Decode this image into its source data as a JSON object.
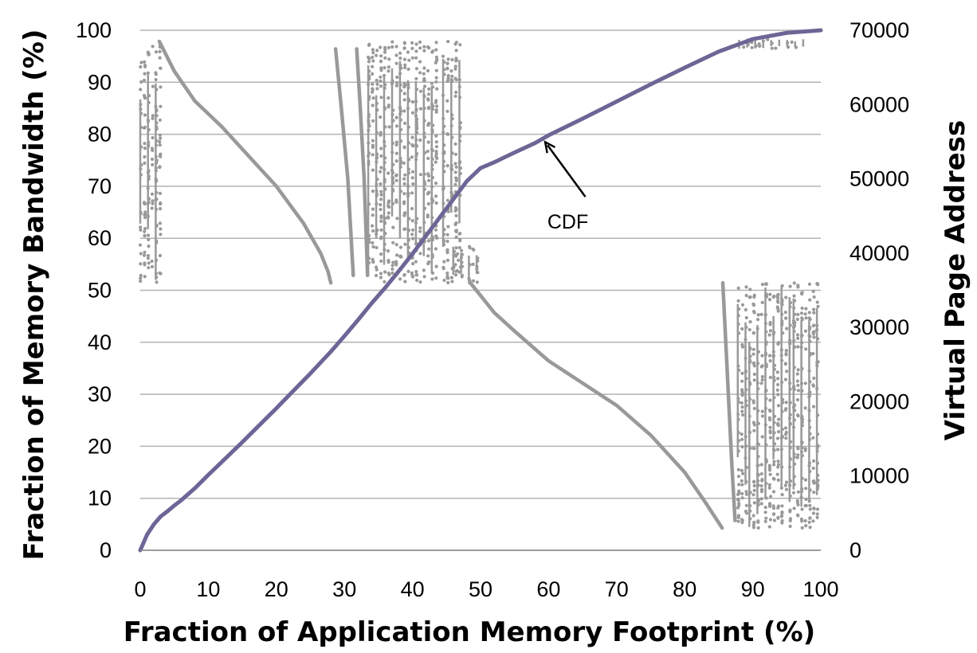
{
  "chart_data": {
    "type": "scatter",
    "title": "",
    "xlabel": "Fraction of Application Memory Footprint (%)",
    "ylabel": "Fraction of Memory Bandwidth (%)",
    "y2label": "Virtual Page Address",
    "xlim": [
      0,
      100
    ],
    "ylim": [
      0,
      100
    ],
    "y2lim": [
      0,
      70000
    ],
    "x_ticks": [
      0,
      10,
      20,
      30,
      40,
      50,
      60,
      70,
      80,
      90,
      100
    ],
    "y_ticks": [
      0,
      10,
      20,
      30,
      40,
      50,
      60,
      70,
      80,
      90,
      100
    ],
    "y2_ticks": [
      0,
      10000,
      20000,
      30000,
      40000,
      50000,
      60000,
      70000
    ],
    "grid": true,
    "legend": "none",
    "colors": {
      "cdf": "#6e6596",
      "scatter": "#999999",
      "grid": "#b3b3b3"
    },
    "series": [
      {
        "name": "CDF",
        "axis": "left",
        "x": [
          0,
          1,
          2,
          3,
          4,
          5,
          6,
          8,
          10,
          12,
          15,
          18,
          20,
          22,
          25,
          28,
          30,
          32,
          34,
          36,
          38,
          40,
          42,
          44,
          46,
          48,
          50,
          52,
          55,
          58,
          60,
          65,
          70,
          75,
          80,
          85,
          90,
          95,
          100
        ],
        "y": [
          0,
          3,
          5,
          6.5,
          7.5,
          8.6,
          9.6,
          11.9,
          14.5,
          17,
          20.8,
          24.7,
          27.3,
          30,
          34,
          38.2,
          41.2,
          44.3,
          47.5,
          50.5,
          53.7,
          57,
          60.5,
          64,
          67.5,
          71,
          73.5,
          74.6,
          76.5,
          78.3,
          79.8,
          83,
          86.3,
          89.6,
          92.8,
          95.9,
          98.3,
          99.5,
          100
        ]
      },
      {
        "name": "",
        "axis": "right",
        "segments": [
          {
            "x": [
              2.8,
              5,
              8,
              12,
              16,
              20,
              24,
              26.5,
              27.6,
              28
            ],
            "y": [
              68500,
              64500,
              60500,
              57000,
              53000,
              49000,
              44000,
              40000,
              37500,
              36000
            ]
          },
          {
            "x": [
              48.5,
              50,
              52,
              55,
              60,
              65,
              70,
              75,
              80,
              83,
              85.5
            ],
            "y": [
              36000,
              34300,
              32000,
              29500,
              25500,
              22500,
              19500,
              15500,
              10500,
              6500,
              3000
            ]
          },
          {
            "x": [
              28.7,
              29.5,
              30.5,
              31.3
            ],
            "y": [
              67500,
              60000,
              50000,
              37000
            ]
          },
          {
            "x": [
              31.8,
              32.3,
              32.9,
              33.4
            ],
            "y": [
              67500,
              60000,
              50000,
              37000
            ]
          },
          {
            "x": [
              85.6,
              86.2,
              86.9,
              87.4
            ],
            "y": [
              36000,
              25000,
              12000,
              4000
            ]
          }
        ],
        "bands": [
          {
            "x": [
              0,
              3.4
            ],
            "y": [
              36000,
              68500
            ]
          },
          {
            "x": [
              33.5,
              40.5
            ],
            "y": [
              36000,
              68500
            ]
          },
          {
            "x": [
              40.5,
              44
            ],
            "y": [
              36000,
              68500
            ]
          },
          {
            "x": [
              44.5,
              47.5
            ],
            "y": [
              36000,
              68500
            ]
          },
          {
            "x": [
              46,
              50
            ],
            "y": [
              36000,
              41000
            ]
          },
          {
            "x": [
              87.8,
              89.5
            ],
            "y": [
              3000,
              36000
            ]
          },
          {
            "x": [
              89.5,
              96
            ],
            "y": [
              3000,
              36000
            ]
          },
          {
            "x": [
              96,
              100
            ],
            "y": [
              3000,
              36000
            ]
          },
          {
            "x": [
              88,
              98
            ],
            "y": [
              67500,
              68800
            ]
          }
        ]
      }
    ],
    "annotations": [
      {
        "text": "CDF",
        "x": 64,
        "y": 64,
        "arrow_to": {
          "x": 59.5,
          "y": 78.5
        }
      }
    ]
  }
}
